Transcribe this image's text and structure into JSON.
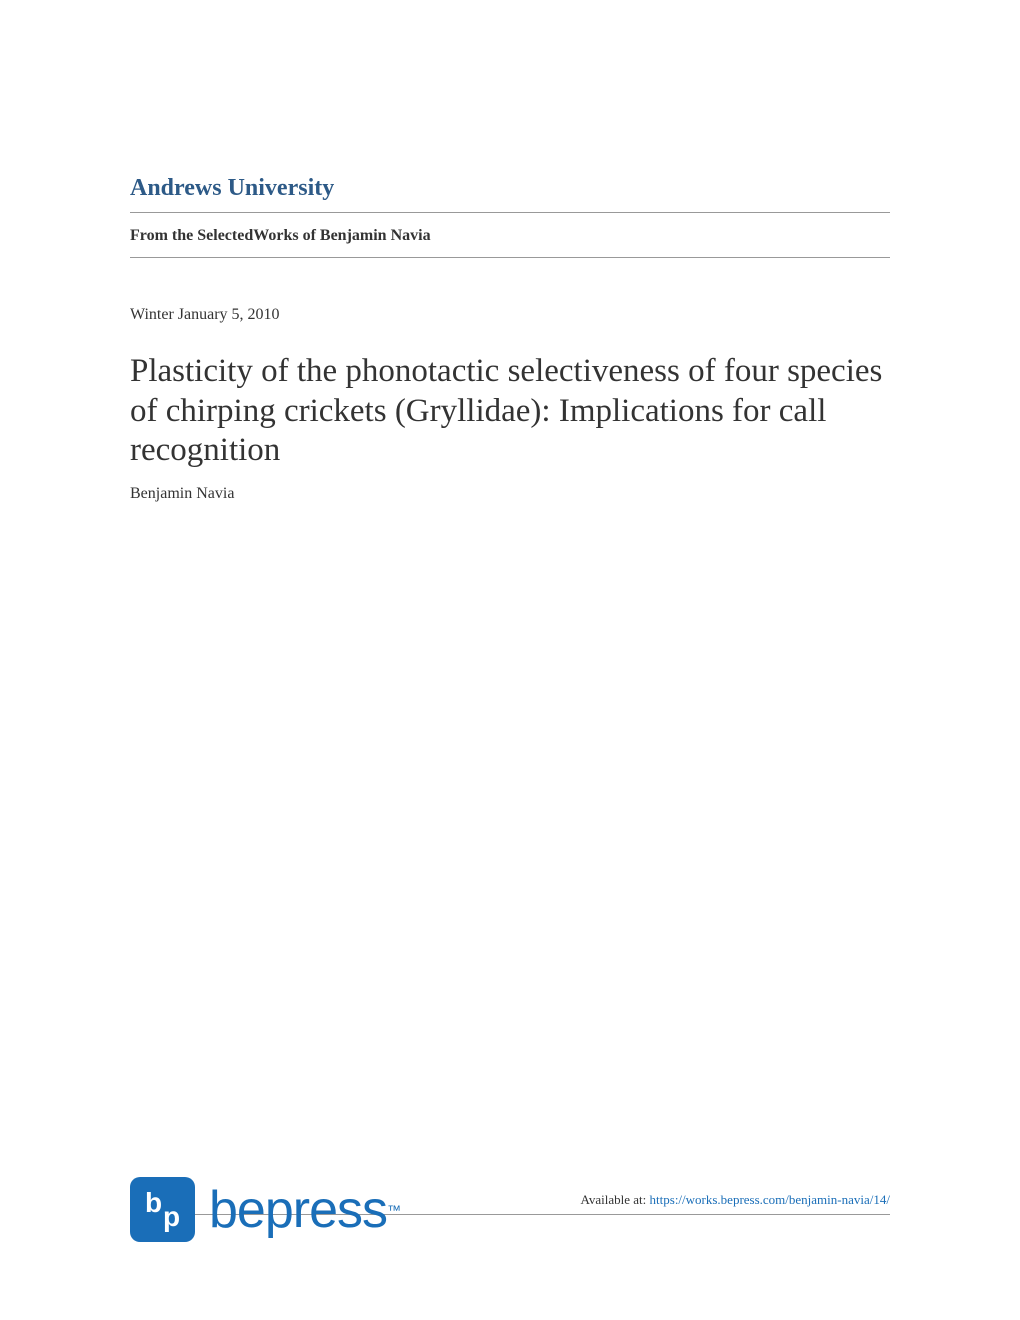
{
  "institution": {
    "name": "Andrews University",
    "color": "#2d5a87"
  },
  "collection": {
    "label": "From the SelectedWorks of Benjamin Navia"
  },
  "date": {
    "label": "Winter January 5, 2010"
  },
  "article": {
    "title": "Plasticity of the phonotactic selectiveness of four species of chirping crickets (Gryllidae): Implications for call recognition",
    "author": "Benjamin Navia"
  },
  "footer": {
    "availability_label": "Available at: ",
    "url": "https://works.bepress.com/benjamin-navia/14/"
  },
  "logo": {
    "badge_text": "bp",
    "wordmark": "bepress",
    "trademark": "™",
    "color": "#1a6eb8"
  },
  "colors": {
    "primary_blue": "#2d5a87",
    "link_blue": "#1a6eb8",
    "text_dark": "#333333",
    "divider_gray": "#999999",
    "background": "#ffffff"
  }
}
